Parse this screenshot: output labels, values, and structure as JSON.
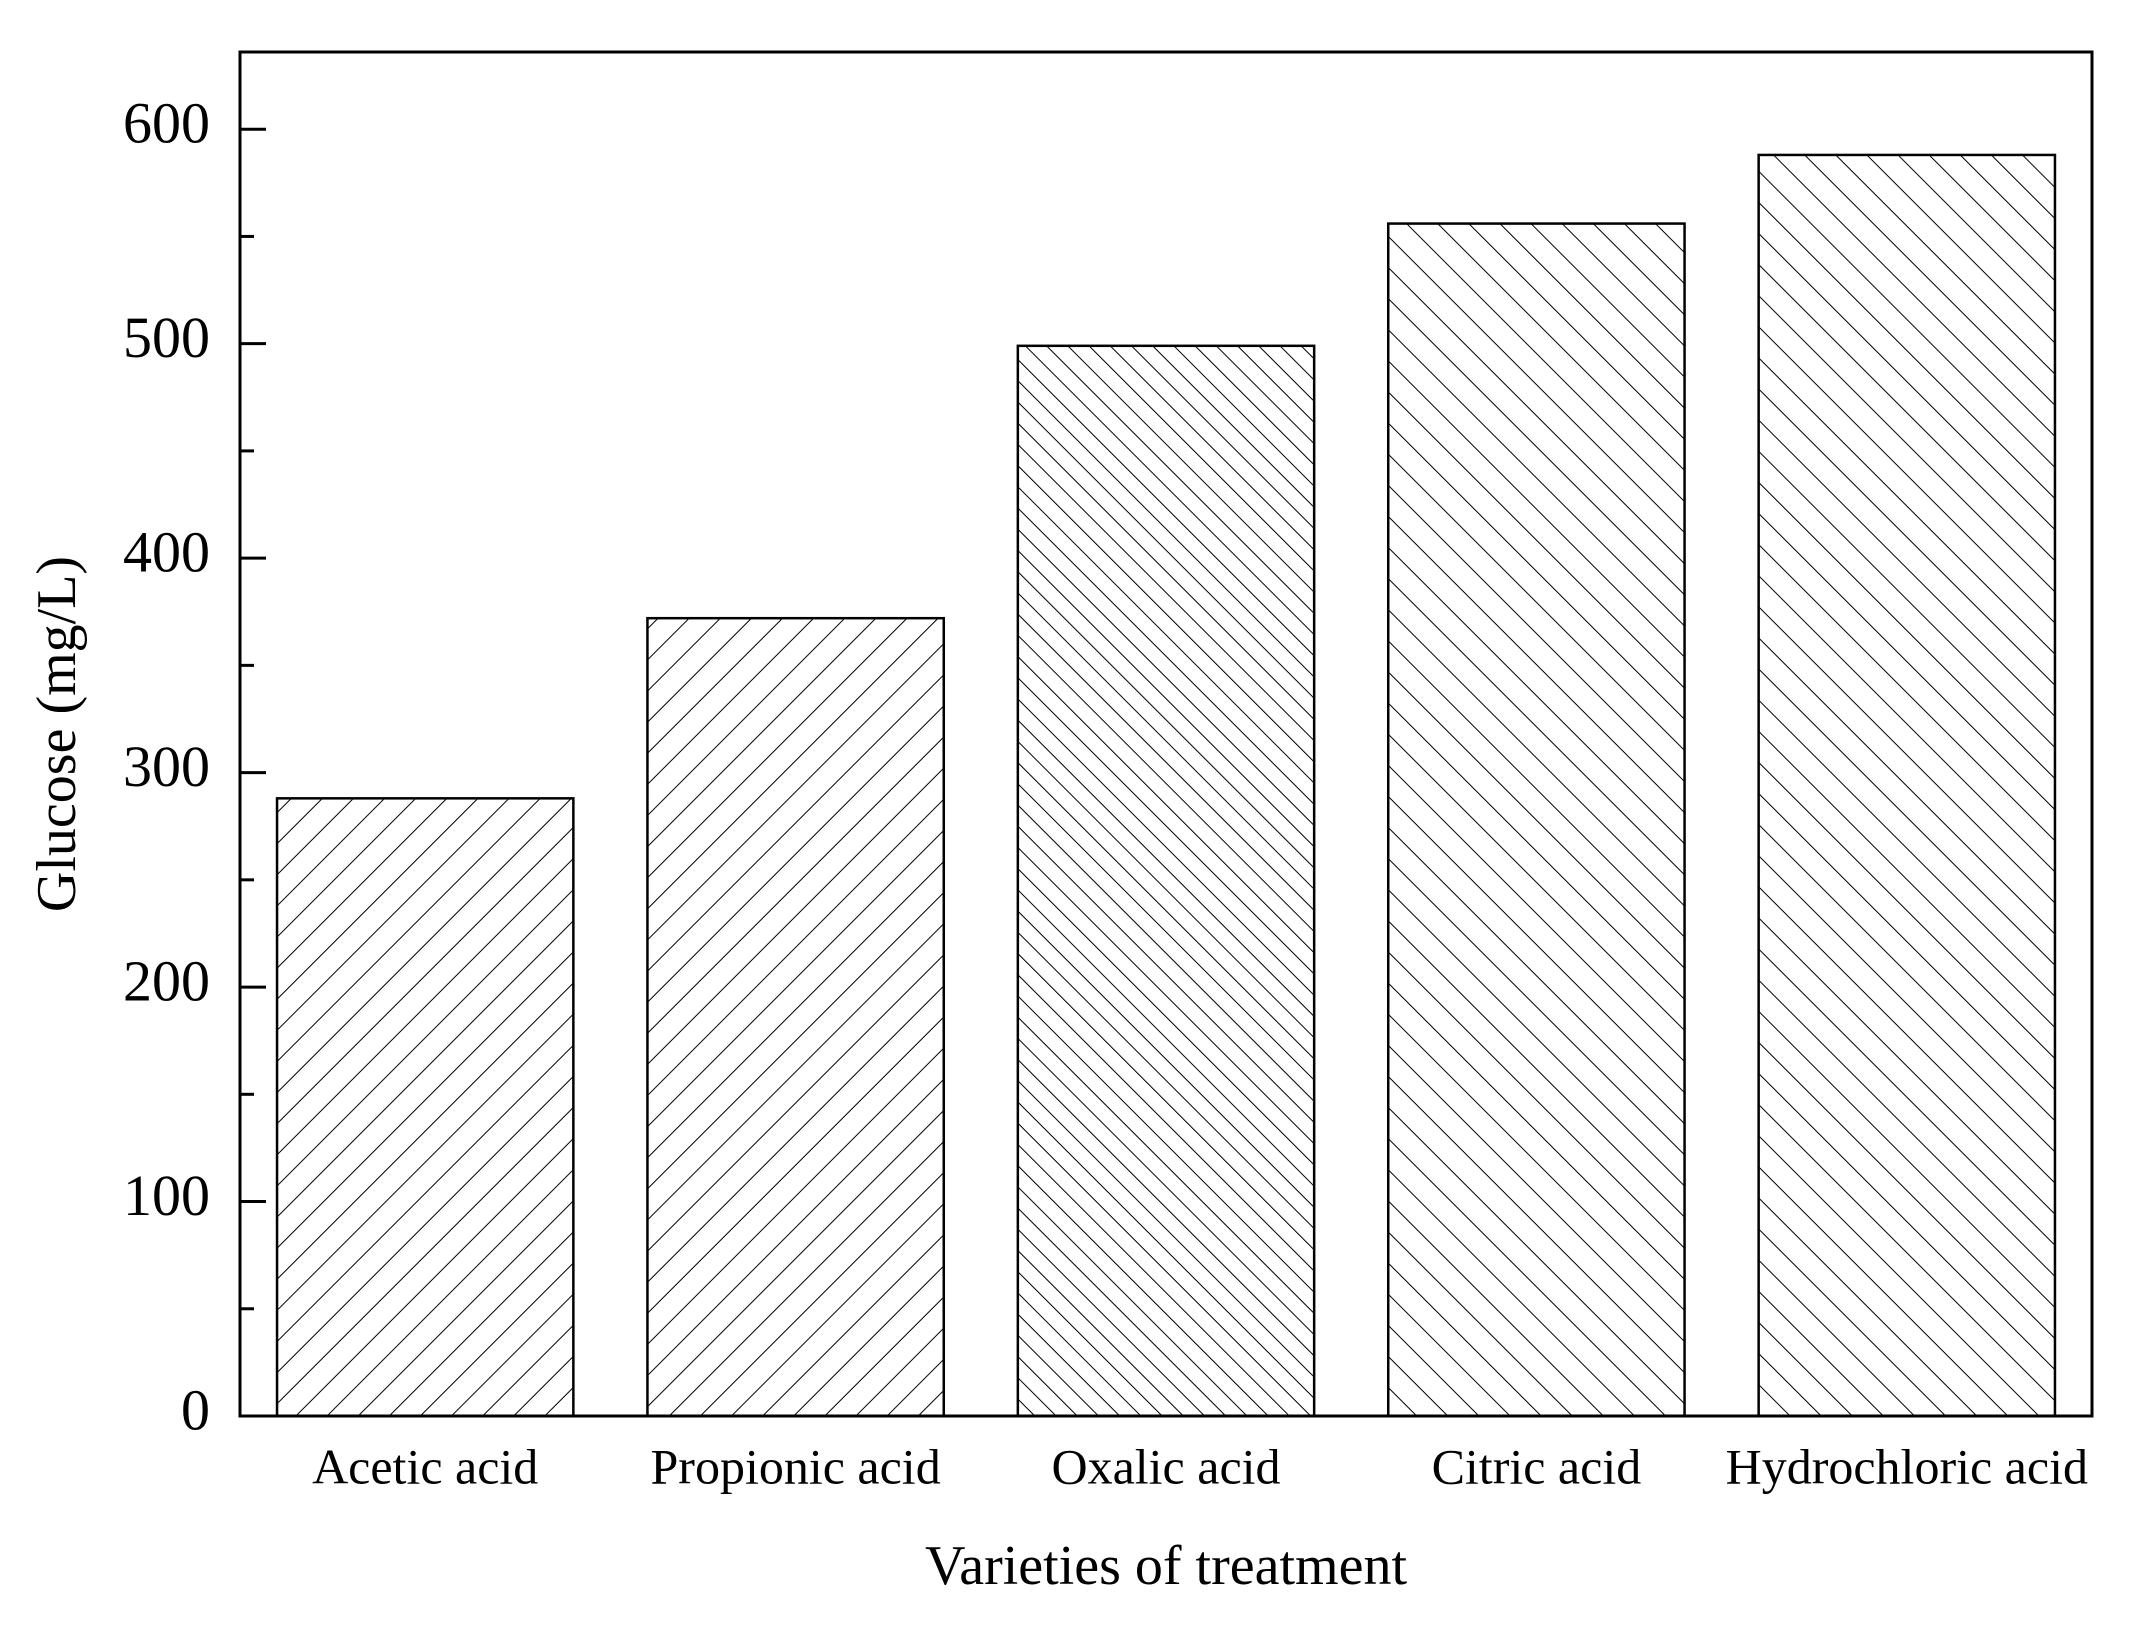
{
  "chart_data": {
    "type": "bar",
    "x_label": "Varieties of treatment",
    "y_label": "Glucose (mg/L)",
    "categories": [
      "Acetic acid",
      "Propionic acid",
      "Oxalic acid",
      "Citric acid",
      "Hydrochloric acid"
    ],
    "values": [
      288,
      372,
      499,
      556,
      588
    ],
    "hatches": [
      "forward",
      "forward",
      "back-dense",
      "back",
      "back"
    ],
    "color": "#000000",
    "ylim": [
      0,
      636
    ],
    "yticks": [
      0,
      100,
      200,
      300,
      400,
      500,
      600
    ],
    "minor_yticks": [
      50,
      150,
      250,
      350,
      450,
      550
    ],
    "grid": false
  }
}
